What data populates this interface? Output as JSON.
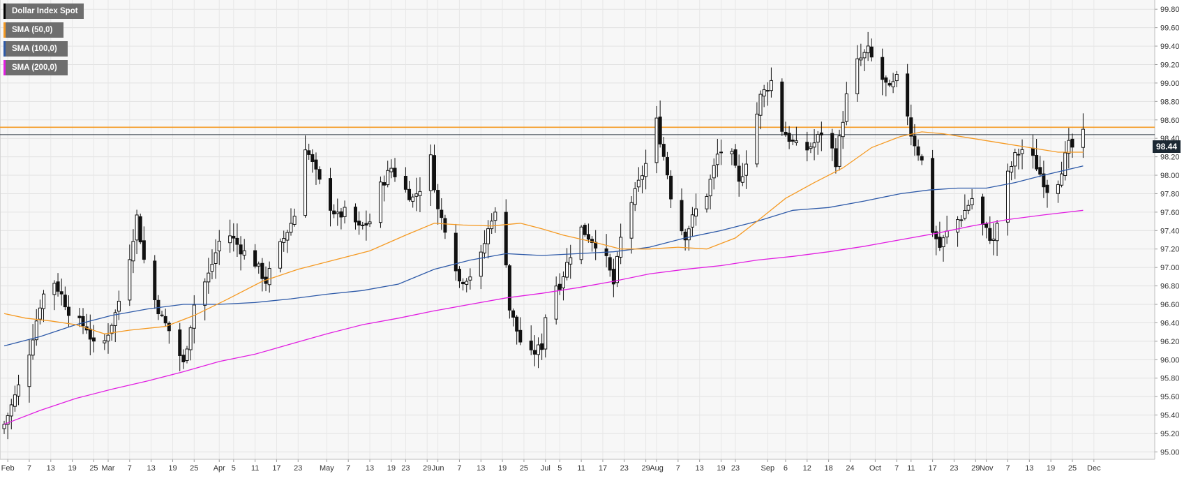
{
  "chart_data": {
    "type": "candlestick",
    "title": "Dollar Index Spot",
    "indicators": [
      {
        "name": "Dollar Index Spot",
        "color": "#000000"
      },
      {
        "name": "SMA (50,0)",
        "color": "#f59a23"
      },
      {
        "name": "SMA (100,0)",
        "color": "#2e5aa8"
      },
      {
        "name": "SMA (200,0)",
        "color": "#e11ee1"
      }
    ],
    "last_price": "98.44",
    "last_price_value": 98.44,
    "resistance_level": 98.52,
    "y_range": [
      94.92,
      99.9
    ],
    "y_ticks": [
      95.0,
      95.2,
      95.4,
      95.6,
      95.8,
      96.0,
      96.2,
      96.4,
      96.6,
      96.8,
      97.0,
      97.2,
      97.4,
      97.6,
      97.8,
      98.0,
      98.2,
      98.4,
      98.6,
      98.8,
      99.0,
      99.2,
      99.4,
      99.6,
      99.8
    ],
    "y_tick_labels": [
      "95.00",
      "95.20",
      "95.40",
      "95.60",
      "95.80",
      "96.00",
      "96.20",
      "96.40",
      "96.60",
      "96.80",
      "97.00",
      "97.20",
      "97.40",
      "97.60",
      "97.80",
      "98.00",
      "98.20",
      "98.40",
      "98.60",
      "98.80",
      "99.00",
      "99.20",
      "99.40",
      "99.60",
      "99.80"
    ],
    "x_range": [
      0,
      320
    ],
    "x_ticks": [
      {
        "label": "Feb",
        "day": 1
      },
      {
        "label": "7",
        "day": 7
      },
      {
        "label": "13",
        "day": 13
      },
      {
        "label": "19",
        "day": 19
      },
      {
        "label": "25",
        "day": 25
      },
      {
        "label": "Mar",
        "day": 29
      },
      {
        "label": "7",
        "day": 35
      },
      {
        "label": "13",
        "day": 41
      },
      {
        "label": "19",
        "day": 47
      },
      {
        "label": "25",
        "day": 53
      },
      {
        "label": "Apr",
        "day": 60
      },
      {
        "label": "5",
        "day": 64
      },
      {
        "label": "11",
        "day": 70
      },
      {
        "label": "17",
        "day": 76
      },
      {
        "label": "23",
        "day": 82
      },
      {
        "label": "May",
        "day": 90
      },
      {
        "label": "7",
        "day": 96
      },
      {
        "label": "13",
        "day": 102
      },
      {
        "label": "19",
        "day": 108
      },
      {
        "label": "23",
        "day": 112
      },
      {
        "label": "29",
        "day": 118
      },
      {
        "label": "Jun",
        "day": 121
      },
      {
        "label": "7",
        "day": 127
      },
      {
        "label": "13",
        "day": 133
      },
      {
        "label": "19",
        "day": 139
      },
      {
        "label": "25",
        "day": 145
      },
      {
        "label": "Jul",
        "day": 151
      },
      {
        "label": "5",
        "day": 155
      },
      {
        "label": "11",
        "day": 161
      },
      {
        "label": "17",
        "day": 167
      },
      {
        "label": "23",
        "day": 173
      },
      {
        "label": "29",
        "day": 179
      },
      {
        "label": "Aug",
        "day": 182
      },
      {
        "label": "7",
        "day": 188
      },
      {
        "label": "13",
        "day": 194
      },
      {
        "label": "19",
        "day": 200
      },
      {
        "label": "23",
        "day": 204
      },
      {
        "label": "Sep",
        "day": 213
      },
      {
        "label": "6",
        "day": 218
      },
      {
        "label": "12",
        "day": 224
      },
      {
        "label": "18",
        "day": 230
      },
      {
        "label": "24",
        "day": 236
      },
      {
        "label": "Oct",
        "day": 243
      },
      {
        "label": "7",
        "day": 249
      },
      {
        "label": "11",
        "day": 253
      },
      {
        "label": "17",
        "day": 259
      },
      {
        "label": "23",
        "day": 265
      },
      {
        "label": "29",
        "day": 271
      },
      {
        "label": "Nov",
        "day": 274
      },
      {
        "label": "7",
        "day": 280
      },
      {
        "label": "13",
        "day": 286
      },
      {
        "label": "19",
        "day": 292
      },
      {
        "label": "25",
        "day": 298
      },
      {
        "label": "Dec",
        "day": 304
      }
    ],
    "close_path": [
      [
        0,
        95.3
      ],
      [
        3,
        95.6
      ],
      [
        6,
        95.92
      ],
      [
        10,
        96.6
      ],
      [
        13,
        96.92
      ],
      [
        16,
        96.7
      ],
      [
        19,
        96.45
      ],
      [
        23,
        96.35
      ],
      [
        26,
        96.05
      ],
      [
        28,
        96.2
      ],
      [
        31,
        96.5
      ],
      [
        34,
        96.92
      ],
      [
        37,
        97.55
      ],
      [
        40,
        96.85
      ],
      [
        44,
        96.45
      ],
      [
        47,
        96.25
      ],
      [
        50,
        95.95
      ],
      [
        53,
        96.6
      ],
      [
        57,
        96.92
      ],
      [
        60,
        97.28
      ],
      [
        63,
        97.35
      ],
      [
        66,
        97.2
      ],
      [
        70,
        97.05
      ],
      [
        73,
        96.85
      ],
      [
        76,
        97.15
      ],
      [
        79,
        97.4
      ],
      [
        82,
        97.65
      ],
      [
        84,
        98.32
      ],
      [
        87,
        98.02
      ],
      [
        90,
        97.72
      ],
      [
        93,
        97.55
      ],
      [
        96,
        97.62
      ],
      [
        99,
        97.42
      ],
      [
        102,
        97.5
      ],
      [
        105,
        97.88
      ],
      [
        108,
        98.08
      ],
      [
        111,
        97.88
      ],
      [
        114,
        97.75
      ],
      [
        117,
        97.92
      ],
      [
        119,
        98.18
      ],
      [
        121,
        97.62
      ],
      [
        124,
        97.35
      ],
      [
        127,
        96.85
      ],
      [
        130,
        96.92
      ],
      [
        133,
        97.12
      ],
      [
        136,
        97.55
      ],
      [
        139,
        97.6
      ],
      [
        141,
        96.55
      ],
      [
        144,
        96.2
      ],
      [
        147,
        96.05
      ],
      [
        150,
        96.15
      ],
      [
        152,
        96.8
      ],
      [
        155,
        96.82
      ],
      [
        158,
        97.15
      ],
      [
        161,
        97.42
      ],
      [
        164,
        97.3
      ],
      [
        167,
        97.2
      ],
      [
        170,
        96.82
      ],
      [
        173,
        97.55
      ],
      [
        176,
        97.8
      ],
      [
        179,
        98.12
      ],
      [
        182,
        98.58
      ],
      [
        185,
        98.02
      ],
      [
        187,
        97.55
      ],
      [
        190,
        97.35
      ],
      [
        193,
        97.62
      ],
      [
        196,
        97.8
      ],
      [
        199,
        98.22
      ],
      [
        202,
        98.35
      ],
      [
        205,
        97.9
      ],
      [
        208,
        98.3
      ],
      [
        211,
        98.85
      ],
      [
        214,
        99.02
      ],
      [
        217,
        98.5
      ],
      [
        220,
        98.35
      ],
      [
        223,
        98.25
      ],
      [
        226,
        98.35
      ],
      [
        229,
        98.52
      ],
      [
        232,
        98.15
      ],
      [
        235,
        98.85
      ],
      [
        238,
        99.22
      ],
      [
        241,
        99.35
      ],
      [
        244,
        99.1
      ],
      [
        247,
        98.92
      ],
      [
        250,
        99.1
      ],
      [
        253,
        98.45
      ],
      [
        256,
        98.15
      ],
      [
        258,
        97.5
      ],
      [
        261,
        97.22
      ],
      [
        264,
        97.45
      ],
      [
        267,
        97.55
      ],
      [
        270,
        97.75
      ],
      [
        273,
        97.45
      ],
      [
        276,
        97.28
      ],
      [
        279,
        97.9
      ],
      [
        282,
        98.2
      ],
      [
        285,
        98.32
      ],
      [
        288,
        98.1
      ],
      [
        291,
        97.85
      ],
      [
        294,
        97.95
      ],
      [
        297,
        98.32
      ],
      [
        299,
        98.28
      ],
      [
        301,
        98.44
      ]
    ],
    "sma50_path": [
      [
        0,
        96.5
      ],
      [
        6,
        96.45
      ],
      [
        13,
        96.42
      ],
      [
        20,
        96.38
      ],
      [
        28,
        96.28
      ],
      [
        35,
        96.32
      ],
      [
        45,
        96.36
      ],
      [
        53,
        96.48
      ],
      [
        62,
        96.65
      ],
      [
        72,
        96.85
      ],
      [
        82,
        96.98
      ],
      [
        92,
        97.08
      ],
      [
        102,
        97.18
      ],
      [
        112,
        97.35
      ],
      [
        120,
        97.48
      ],
      [
        128,
        97.46
      ],
      [
        136,
        97.45
      ],
      [
        144,
        97.48
      ],
      [
        150,
        97.42
      ],
      [
        156,
        97.35
      ],
      [
        164,
        97.28
      ],
      [
        172,
        97.2
      ],
      [
        180,
        97.2
      ],
      [
        188,
        97.22
      ],
      [
        196,
        97.2
      ],
      [
        204,
        97.32
      ],
      [
        210,
        97.5
      ],
      [
        218,
        97.75
      ],
      [
        226,
        97.92
      ],
      [
        234,
        98.08
      ],
      [
        242,
        98.3
      ],
      [
        250,
        98.42
      ],
      [
        256,
        98.47
      ],
      [
        262,
        98.45
      ],
      [
        270,
        98.4
      ],
      [
        278,
        98.35
      ],
      [
        286,
        98.3
      ],
      [
        294,
        98.25
      ],
      [
        301,
        98.25
      ]
    ],
    "sma100_path": [
      [
        0,
        96.15
      ],
      [
        10,
        96.25
      ],
      [
        20,
        96.38
      ],
      [
        30,
        96.48
      ],
      [
        40,
        96.55
      ],
      [
        50,
        96.6
      ],
      [
        60,
        96.6
      ],
      [
        70,
        96.62
      ],
      [
        80,
        96.66
      ],
      [
        90,
        96.71
      ],
      [
        100,
        96.75
      ],
      [
        110,
        96.82
      ],
      [
        120,
        96.98
      ],
      [
        130,
        97.08
      ],
      [
        140,
        97.15
      ],
      [
        150,
        97.13
      ],
      [
        160,
        97.15
      ],
      [
        170,
        97.17
      ],
      [
        180,
        97.22
      ],
      [
        190,
        97.32
      ],
      [
        200,
        97.4
      ],
      [
        210,
        97.5
      ],
      [
        220,
        97.62
      ],
      [
        230,
        97.65
      ],
      [
        240,
        97.72
      ],
      [
        250,
        97.8
      ],
      [
        258,
        97.84
      ],
      [
        266,
        97.86
      ],
      [
        274,
        97.86
      ],
      [
        282,
        97.92
      ],
      [
        290,
        98.0
      ],
      [
        301,
        98.1
      ]
    ],
    "sma200_path": [
      [
        0,
        95.3
      ],
      [
        10,
        95.45
      ],
      [
        20,
        95.58
      ],
      [
        30,
        95.68
      ],
      [
        40,
        95.77
      ],
      [
        50,
        95.87
      ],
      [
        60,
        95.98
      ],
      [
        70,
        96.06
      ],
      [
        80,
        96.17
      ],
      [
        90,
        96.28
      ],
      [
        100,
        96.38
      ],
      [
        110,
        96.45
      ],
      [
        120,
        96.53
      ],
      [
        130,
        96.6
      ],
      [
        140,
        96.67
      ],
      [
        150,
        96.72
      ],
      [
        160,
        96.78
      ],
      [
        170,
        96.85
      ],
      [
        180,
        96.93
      ],
      [
        190,
        96.98
      ],
      [
        200,
        97.02
      ],
      [
        210,
        97.08
      ],
      [
        220,
        97.12
      ],
      [
        230,
        97.17
      ],
      [
        240,
        97.23
      ],
      [
        250,
        97.3
      ],
      [
        260,
        97.37
      ],
      [
        270,
        97.45
      ],
      [
        280,
        97.52
      ],
      [
        290,
        97.57
      ],
      [
        301,
        97.62
      ]
    ]
  }
}
